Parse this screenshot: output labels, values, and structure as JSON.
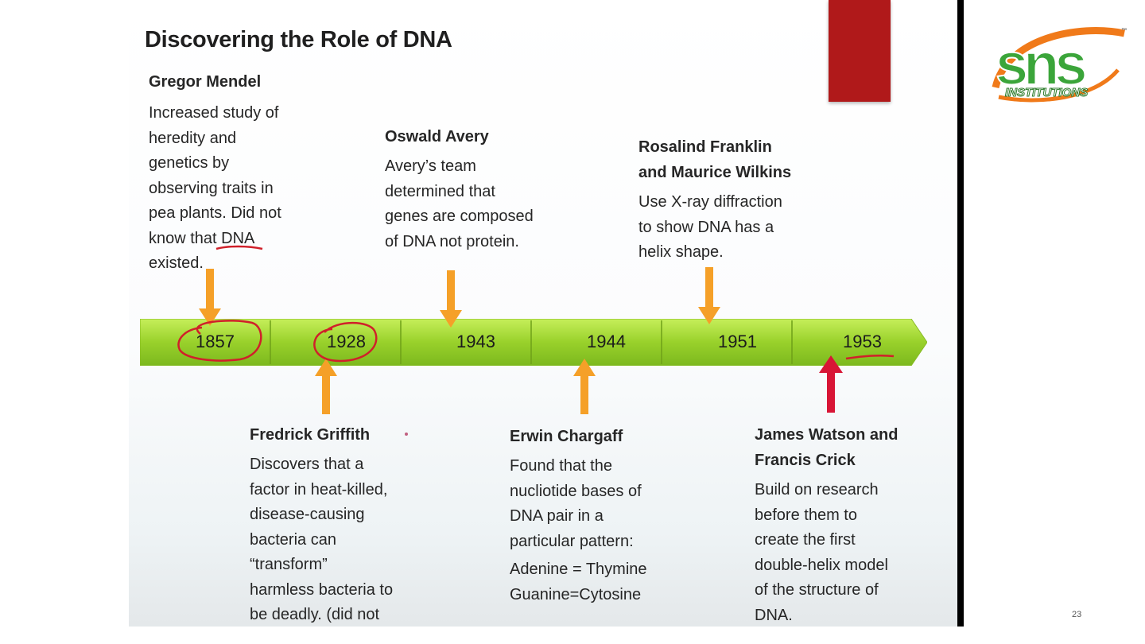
{
  "slide": {
    "title": "Discovering the Role of DNA",
    "events": [
      {
        "name": "Gregor Mendel",
        "desc": [
          "Increased study of",
          "heredity and",
          "genetics by",
          "observing traits in",
          "pea plants. Did not",
          "know that DNA",
          "existed."
        ]
      },
      {
        "name": "Oswald Avery",
        "desc": [
          "Avery’s team",
          "determined that",
          "genes are composed",
          "of DNA not protein."
        ]
      },
      {
        "name": [
          "Rosalind Franklin",
          "and Maurice Wilkins"
        ],
        "desc": [
          "Use X-ray diffraction",
          "to show DNA has a",
          "helix shape."
        ]
      },
      {
        "name": "Fredrick Griffith",
        "desc": [
          "Discovers that a",
          "factor  in heat-killed,",
          "disease-causing",
          "bacteria can",
          "“transform”",
          "harmless bacteria to",
          "be deadly. (did not"
        ]
      },
      {
        "name": "Erwin Chargaff",
        "desc": [
          "Found that the",
          "nucliotide bases of",
          "DNA pair in a",
          "particular pattern:"
        ],
        "pairs": [
          "Adenine = Thymine",
          "Guanine=Cytosine"
        ]
      },
      {
        "name": [
          "James Watson and",
          "Francis Crick"
        ],
        "desc": [
          "Build on research",
          "before them to",
          "create the first",
          "double-helix model",
          "of the structure of",
          "DNA."
        ]
      }
    ],
    "years": [
      "1857",
      "1928",
      "1943",
      "1944",
      "1951",
      "1953"
    ]
  },
  "logo": {
    "letters": "sns",
    "subtitle": "INSTITUTIONS",
    "tm": "™"
  },
  "page_number": "23",
  "colors": {
    "timeline": "#99d12b",
    "arrow": "#f5a028",
    "red_arrow": "#d81535",
    "ink": "#d0202a",
    "red_block": "#b0191a",
    "logo_orange": "#f07a1a",
    "logo_green": "#3ba53a"
  }
}
